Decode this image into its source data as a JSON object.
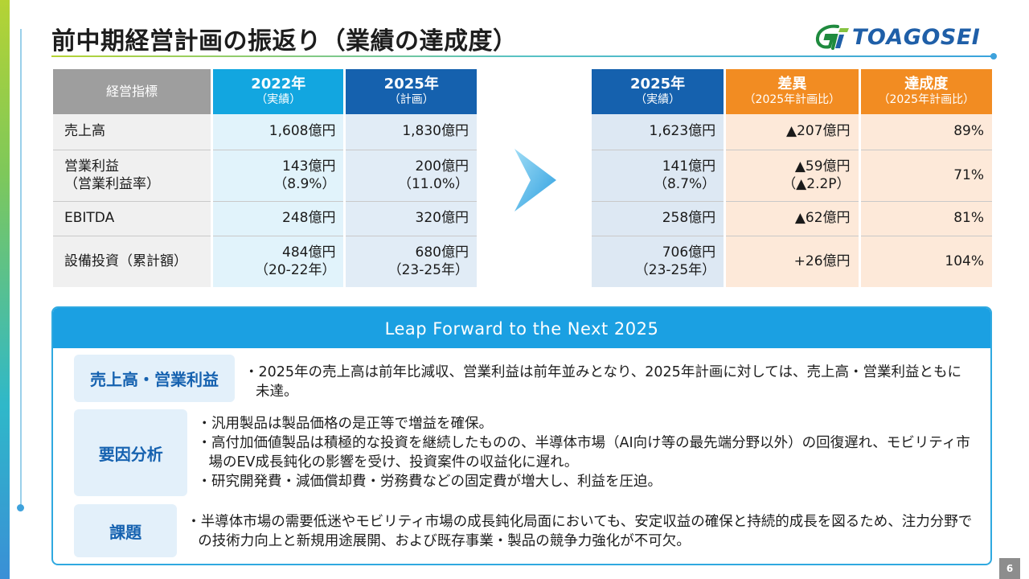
{
  "title": "前中期経営計画の振返り（業績の達成度）",
  "logo": {
    "text": "TOAGOSEI"
  },
  "page_number": "6",
  "left_table": {
    "headers": [
      {
        "main": "経営指標",
        "sub": ""
      },
      {
        "main": "2022年",
        "sub": "（実績）"
      },
      {
        "main": "2025年",
        "sub": "（計画）"
      }
    ],
    "rows": [
      {
        "label": [
          "売上高"
        ],
        "v2022": [
          "1,608億円"
        ],
        "v2025plan": [
          "1,830億円"
        ]
      },
      {
        "label": [
          "営業利益",
          "（営業利益率）"
        ],
        "v2022": [
          "143億円",
          "（8.9%）"
        ],
        "v2025plan": [
          "200億円",
          "（11.0%）"
        ]
      },
      {
        "label": [
          "EBITDA"
        ],
        "v2022": [
          "248億円"
        ],
        "v2025plan": [
          "320億円"
        ]
      },
      {
        "label": [
          "設備投資（累計額）"
        ],
        "v2022": [
          "484億円",
          "（20-22年）"
        ],
        "v2025plan": [
          "680億円",
          "（23-25年）"
        ]
      }
    ]
  },
  "right_table": {
    "headers": [
      {
        "main": "2025年",
        "sub": "（実績）"
      },
      {
        "main": "差異",
        "sub": "（2025年計画比）"
      },
      {
        "main": "達成度",
        "sub": "（2025年計画比）"
      }
    ],
    "rows": [
      {
        "actual": [
          "1,623億円"
        ],
        "diff": [
          "▲207億円"
        ],
        "rate": "89%"
      },
      {
        "actual": [
          "141億円",
          "（8.7%）"
        ],
        "diff": [
          "▲59億円",
          "（▲2.2P）"
        ],
        "rate": "71%"
      },
      {
        "actual": [
          "258億円"
        ],
        "diff": [
          "▲62億円"
        ],
        "rate": "81%"
      },
      {
        "actual": [
          "706億円",
          "（23-25年）"
        ],
        "diff": [
          "+26億円"
        ],
        "rate": "104%"
      }
    ]
  },
  "summary": {
    "heading": "Leap Forward to the Next 2025",
    "items": [
      {
        "tag": "売上高・営業利益",
        "bullets": [
          "・2025年の売上高は前年比減収、営業利益は前年並みとなり、2025年計画に対しては、売上高・営業利益ともに未達。"
        ]
      },
      {
        "tag": "要因分析",
        "bullets": [
          "・汎用製品は製品価格の是正等で増益を確保。",
          "・高付加価値製品は積極的な投資を継続したものの、半導体市場（AI向け等の最先端分野以外）の回復遅れ、モビリティ市場のEV成長鈍化の影響を受け、投資案件の収益化に遅れ。",
          "・研究開発費・減価償却費・労務費などの固定費が増大し、利益を圧迫。"
        ]
      },
      {
        "tag": "課題",
        "bullets": [
          "・半導体市場の需要低迷やモビリティ市場の成長鈍化局面においても、安定収益の確保と持続的成長を図るため、注力分野での技術力向上と新規用途展開、および既存事業・製品の競争力強化が不可欠。"
        ]
      }
    ]
  }
}
